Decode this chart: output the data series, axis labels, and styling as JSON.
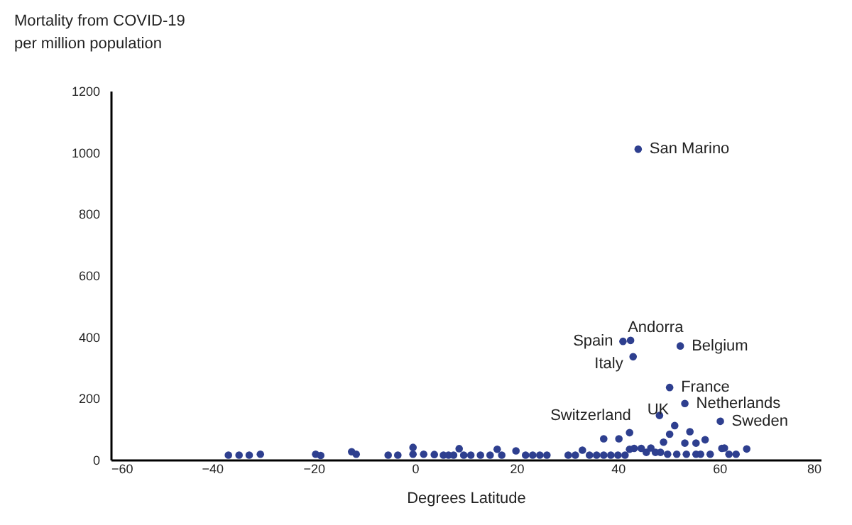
{
  "chart_data": {
    "type": "scatter",
    "ylabel": "Mortality from COVID-19 per million population",
    "xlabel": "Degrees Latitude",
    "series": [
      {
        "color": "#2e3f8f",
        "x": [
          44,
          42.5,
          41,
          43,
          52.3,
          50.2,
          53.2,
          48.2,
          51.2,
          60.2,
          -36.8,
          -34.7,
          -32.7,
          -30.5,
          -19.6,
          -18.6,
          -12.5,
          -11.6,
          -5.3,
          -3.4,
          -0.4,
          -0.4,
          1.7,
          3.8,
          5.6,
          6.6,
          7.6,
          8.7,
          9.6,
          11.0,
          12.9,
          14.8,
          16.2,
          17.1,
          19.9,
          21.8,
          23.2,
          24.6,
          26.0,
          30.2,
          31.6,
          33.0,
          34.4,
          35.8,
          37.2,
          38.6,
          40.0,
          41.4,
          42.3,
          43.2,
          44.6,
          45.6,
          46.5,
          47.4,
          48.4,
          49.8,
          51.6,
          53.5,
          55.4,
          56.3,
          58.2,
          61.0,
          61.9,
          63.3,
          65.4,
          37.2,
          40.2,
          42.3,
          49.0,
          50.2,
          54.2,
          53.2,
          55.4,
          57.2,
          60.5
        ],
        "values": [
          1010,
          388,
          385,
          335,
          370,
          235,
          183,
          144,
          111,
          125,
          15,
          15,
          15,
          18,
          18,
          14,
          26,
          18,
          15,
          15,
          40,
          18,
          18,
          17,
          15,
          15,
          15,
          36,
          15,
          15,
          15,
          15,
          34,
          15,
          29,
          15,
          15,
          15,
          15,
          15,
          15,
          31,
          15,
          15,
          15,
          15,
          15,
          15,
          34,
          37,
          37,
          24,
          38,
          24,
          24,
          18,
          18,
          18,
          18,
          18,
          18,
          38,
          18,
          18,
          35,
          68,
          68,
          88,
          57,
          83,
          91,
          54,
          54,
          65,
          37
        ]
      }
    ],
    "xlim": [
      -60,
      80
    ],
    "xticks": [
      -60,
      -40,
      -20,
      0,
      20,
      40,
      60,
      80
    ],
    "ylim": [
      0,
      1200
    ],
    "yticks": [
      0,
      200,
      400,
      600,
      800,
      1000,
      1200
    ],
    "grid": false,
    "marker": "circle",
    "annotations": [
      {
        "text": "San Marino",
        "x": 44,
        "y": 1010
      },
      {
        "text": "Andorra",
        "x": 42.5,
        "y": 388
      },
      {
        "text": "Spain",
        "x": 41,
        "y": 385
      },
      {
        "text": "Italy",
        "x": 43,
        "y": 335
      },
      {
        "text": "Belgium",
        "x": 52.3,
        "y": 370
      },
      {
        "text": "France",
        "x": 50.2,
        "y": 235
      },
      {
        "text": "Netherlands",
        "x": 53.2,
        "y": 183
      },
      {
        "text": "Switzerland",
        "x": 48.2,
        "y": 144
      },
      {
        "text": "UK",
        "x": 51.2,
        "y": 111
      },
      {
        "text": "Sweden",
        "x": 60.2,
        "y": 125
      }
    ]
  }
}
